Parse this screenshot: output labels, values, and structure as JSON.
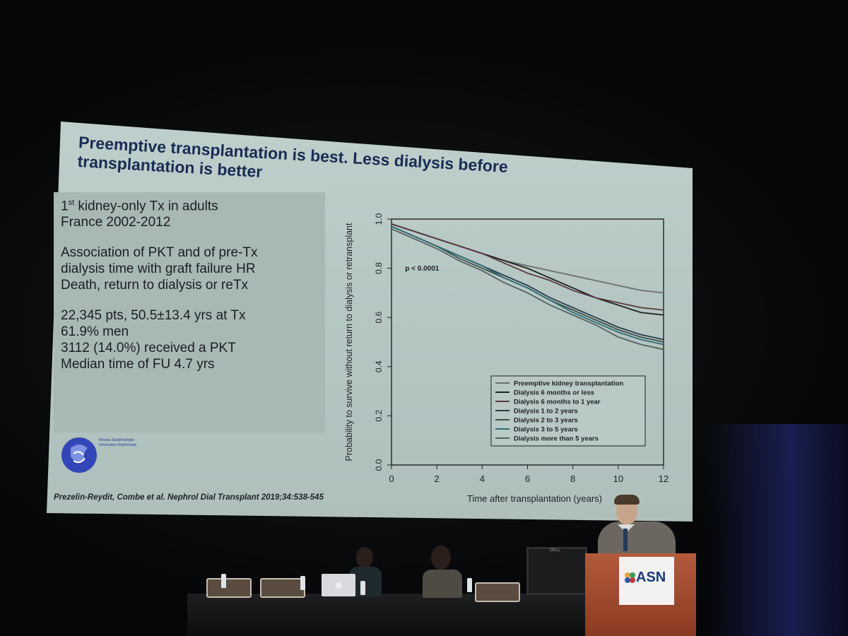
{
  "slide": {
    "title": "Preemptive transplantation is best. Less dialysis before transplantation is better",
    "bullets": {
      "line1_base": "1",
      "line1_sup": "st",
      "line1_rest": " kidney-only Tx in adults",
      "line2": "France 2002-2012",
      "line3": "Association of PKT and of pre-Tx",
      "line4": "dialysis time with graft failure HR",
      "line5": "Death, return to dialysis or reTx",
      "line6": "22,345 pts, 50.5±13.4 yrs at Tx",
      "line7": "61.9% men",
      "line8": "3112 (14.0%) received a PKT",
      "line9": "Median time of FU 4.7 yrs"
    },
    "logo_text": "Réseau Épidémiologie Information Néphrologie",
    "citation": "Prezelin-Reydit, Combe et al. Nephrol Dial Transplant 2019;34:538-545"
  },
  "stage": {
    "podium_logo": "ASN",
    "monitor_brand": "DELL"
  },
  "colors": {
    "title": "#1a2c54",
    "slide_bg": "#b8c8c5",
    "podium": "#9c4528",
    "asn_blue": "#1d3a78"
  },
  "chart_data": {
    "type": "line",
    "xlabel": "Time after transplantation (years)",
    "ylabel": "Probability to survive without return to dialysis or retransplant",
    "xlim": [
      0,
      12
    ],
    "ylim": [
      0,
      1
    ],
    "xticks": [
      "0",
      "2",
      "4",
      "6",
      "8",
      "10",
      "12"
    ],
    "yticks": [
      "0.0",
      "0.2",
      "0.4",
      "0.6",
      "0.8",
      "1.0"
    ],
    "annotation": "p < 0.0001",
    "legend_position": "bottom-right",
    "x": [
      0,
      1,
      2,
      3,
      4,
      5,
      6,
      7,
      8,
      9,
      10,
      11,
      12
    ],
    "series": [
      {
        "name": "Preemptive kidney transplantation",
        "color": "#6b6f70",
        "values": [
          0.98,
          0.95,
          0.92,
          0.89,
          0.86,
          0.83,
          0.81,
          0.79,
          0.77,
          0.75,
          0.73,
          0.71,
          0.7
        ]
      },
      {
        "name": "Dialysis 6 months or less",
        "color": "#1f2022",
        "values": [
          0.98,
          0.95,
          0.92,
          0.89,
          0.86,
          0.83,
          0.8,
          0.76,
          0.72,
          0.68,
          0.65,
          0.62,
          0.61
        ]
      },
      {
        "name": "Dialysis 6 months to 1 year",
        "color": "#5a3a3e",
        "values": [
          0.98,
          0.95,
          0.92,
          0.89,
          0.86,
          0.82,
          0.78,
          0.75,
          0.71,
          0.68,
          0.66,
          0.64,
          0.63
        ]
      },
      {
        "name": "Dialysis 1 to 2 years",
        "color": "#2a3a48",
        "values": [
          0.97,
          0.93,
          0.89,
          0.85,
          0.81,
          0.77,
          0.73,
          0.68,
          0.64,
          0.6,
          0.56,
          0.53,
          0.51
        ]
      },
      {
        "name": "Dialysis 2 to 3 years",
        "color": "#3c4f4a",
        "values": [
          0.97,
          0.93,
          0.89,
          0.84,
          0.8,
          0.76,
          0.72,
          0.67,
          0.63,
          0.59,
          0.55,
          0.52,
          0.5
        ]
      },
      {
        "name": "Dialysis 3 to 5 years",
        "color": "#2e6b74",
        "values": [
          0.97,
          0.93,
          0.89,
          0.85,
          0.81,
          0.76,
          0.72,
          0.67,
          0.62,
          0.58,
          0.54,
          0.51,
          0.49
        ]
      },
      {
        "name": "Dialysis more than 5 years",
        "color": "#54605e",
        "values": [
          0.96,
          0.92,
          0.88,
          0.83,
          0.79,
          0.74,
          0.7,
          0.65,
          0.61,
          0.57,
          0.52,
          0.49,
          0.47
        ]
      }
    ]
  }
}
